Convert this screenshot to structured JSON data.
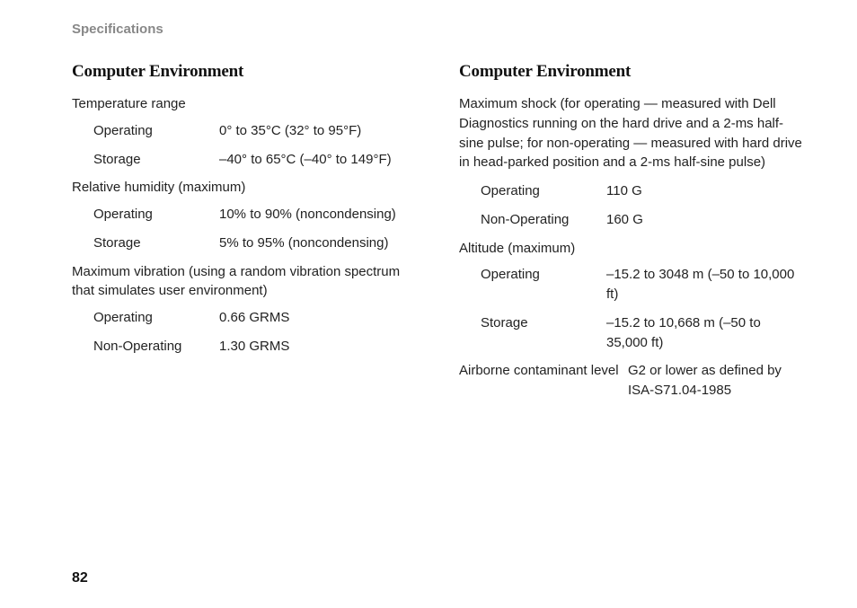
{
  "header": "Specifications",
  "pageNumber": "82",
  "left": {
    "title": "Computer Environment",
    "temp": {
      "label": "Temperature range",
      "operating": {
        "k": "Operating",
        "v": "0° to 35°C (32° to 95°F)"
      },
      "storage": {
        "k": "Storage",
        "v": "–40° to 65°C (–40° to 149°F)"
      }
    },
    "humidity": {
      "label": "Relative humidity (maximum)",
      "operating": {
        "k": "Operating",
        "v": "10% to 90% (noncondensing)"
      },
      "storage": {
        "k": "Storage",
        "v": "5% to 95% (noncondensing)"
      }
    },
    "vibration": {
      "label": "Maximum vibration (using a random vibration spectrum that simulates user environment)",
      "operating": {
        "k": "Operating",
        "v": "0.66 GRMS"
      },
      "nonoperating": {
        "k": "Non-Operating",
        "v": "1.30 GRMS"
      }
    }
  },
  "right": {
    "title": "Computer Environment",
    "shock": {
      "label": "Maximum shock (for operating — measured with Dell Diagnostics running on the hard drive and a 2-ms half-sine pulse; for non-operating — measured with hard drive in head-parked position and a 2-ms half-sine pulse)",
      "operating": {
        "k": "Operating",
        "v": "110 G"
      },
      "nonoperating": {
        "k": "Non-Operating",
        "v": "160 G"
      }
    },
    "altitude": {
      "label": "Altitude (maximum)",
      "operating": {
        "k": "Operating",
        "v": "–15.2 to 3048 m (–50 to 10,000 ft)"
      },
      "storage": {
        "k": "Storage",
        "v": "–15.2 to 10,668 m (–50 to 35,000 ft)"
      }
    },
    "airborne": {
      "k": "Airborne contaminant level",
      "v": "G2 or lower as defined by ISA-S71.04-1985"
    }
  }
}
